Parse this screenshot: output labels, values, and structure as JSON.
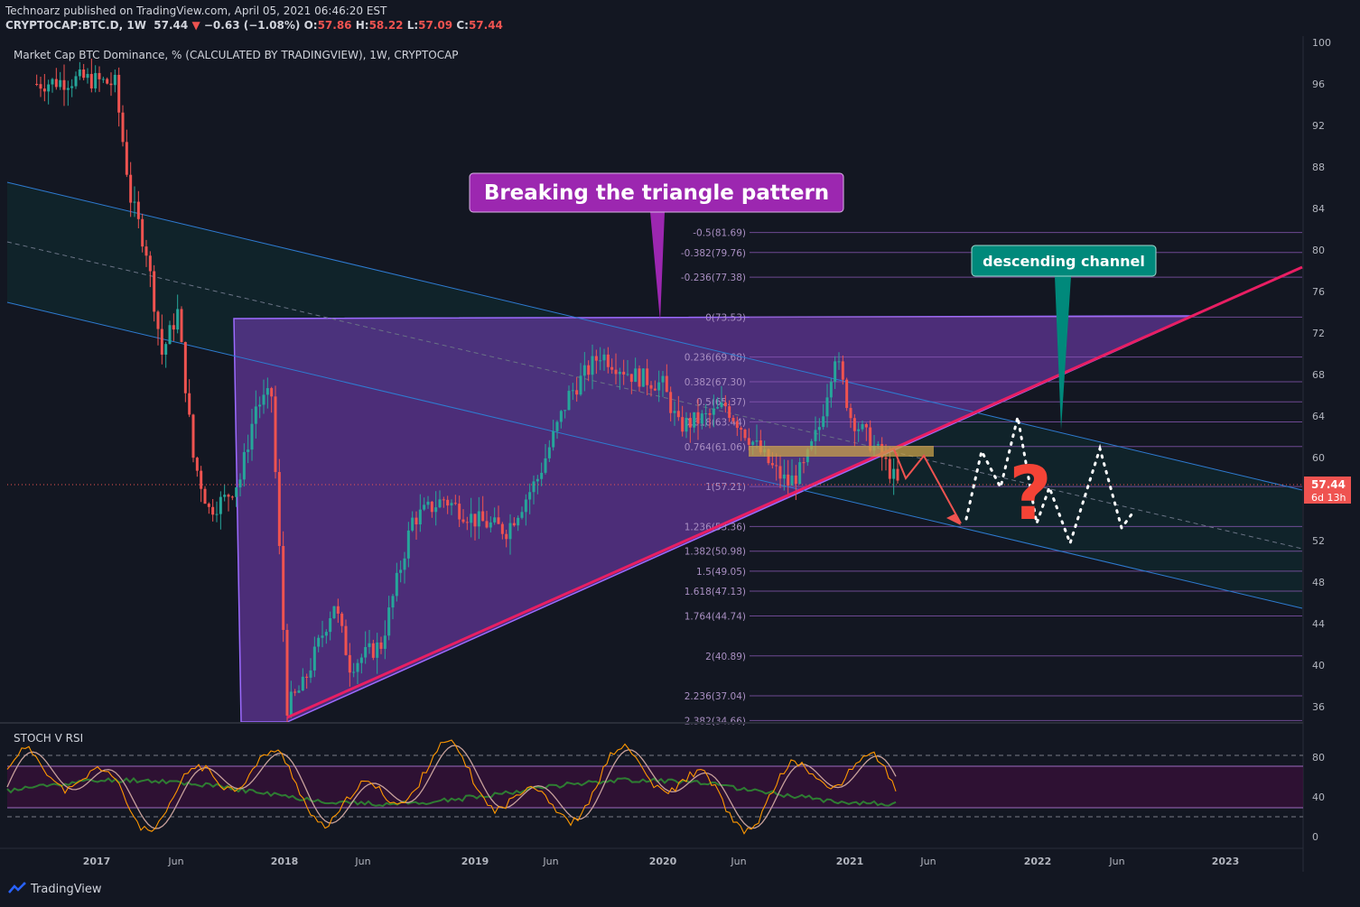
{
  "header": {
    "publisher_line": "Technoarz published on TradingView.com, April 05, 2021 06:46:20 EST",
    "symbol": "CRYPTOCAP:BTC.D, 1W",
    "last": "57.44",
    "arrow": "▼",
    "change": "−0.63 (−1.08%)",
    "o_label": "O:",
    "o": "57.86",
    "h_label": "H:",
    "h": "58.22",
    "l_label": "L:",
    "l": "57.09",
    "c_label": "C:",
    "c": "57.44"
  },
  "footer": {
    "brand": "TradingView"
  },
  "colors": {
    "background": "#131722",
    "up_candle": "#26a69a",
    "down_candle": "#ef5350",
    "triangle_fill": "#7b3fbf",
    "support_line": "#e91e63",
    "channel_line": "#2e7bd1",
    "annotation_purple": "#9c27b0",
    "annotation_teal": "#00897b",
    "question_mark": "#f44336",
    "stoch_k": "#ff9800",
    "stoch_d": "#c7a09b",
    "rsi": "#2e7d32"
  },
  "chart_data": {
    "type": "candlestick",
    "title": "Market Cap BTC Dominance, % (CALCULATED BY TRADINGVIEW), 1W, CRYPTOCAP",
    "x_labels": [
      "2017",
      "Jun",
      "2018",
      "Jun",
      "2019",
      "Jun",
      "2020",
      "Jun",
      "2021",
      "Jun",
      "2022",
      "Jun",
      "2023"
    ],
    "y_ticks": [
      100,
      96,
      92,
      88,
      84,
      80,
      76,
      72,
      68,
      64,
      60,
      56,
      52,
      48,
      44,
      40,
      36
    ],
    "y_range": [
      34,
      100
    ],
    "last_price": "57.44",
    "countdown": "6d 13h",
    "series_close": [
      {
        "date": "2016-09",
        "value": 96
      },
      {
        "date": "2016-12",
        "value": 96.5
      },
      {
        "date": "2017-02",
        "value": 96
      },
      {
        "date": "2017-03",
        "value": 85
      },
      {
        "date": "2017-04",
        "value": 80
      },
      {
        "date": "2017-05",
        "value": 70
      },
      {
        "date": "2017-06",
        "value": 74
      },
      {
        "date": "2017-07",
        "value": 60
      },
      {
        "date": "2017-08",
        "value": 55
      },
      {
        "date": "2017-09",
        "value": 56
      },
      {
        "date": "2017-10",
        "value": 58
      },
      {
        "date": "2017-11",
        "value": 65
      },
      {
        "date": "2017-12",
        "value": 66
      },
      {
        "date": "2018-01",
        "value": 36
      },
      {
        "date": "2018-02",
        "value": 38
      },
      {
        "date": "2018-03",
        "value": 42
      },
      {
        "date": "2018-04",
        "value": 46
      },
      {
        "date": "2018-05",
        "value": 40
      },
      {
        "date": "2018-07",
        "value": 42
      },
      {
        "date": "2018-09",
        "value": 54
      },
      {
        "date": "2018-11",
        "value": 56
      },
      {
        "date": "2019-01",
        "value": 54
      },
      {
        "date": "2019-03",
        "value": 53
      },
      {
        "date": "2019-05",
        "value": 58
      },
      {
        "date": "2019-07",
        "value": 66
      },
      {
        "date": "2019-09",
        "value": 70
      },
      {
        "date": "2019-11",
        "value": 68
      },
      {
        "date": "2020-01",
        "value": 67
      },
      {
        "date": "2020-02",
        "value": 63
      },
      {
        "date": "2020-04",
        "value": 64
      },
      {
        "date": "2020-05",
        "value": 65
      },
      {
        "date": "2020-07",
        "value": 61
      },
      {
        "date": "2020-08",
        "value": 59
      },
      {
        "date": "2020-09",
        "value": 57.5
      },
      {
        "date": "2020-10",
        "value": 59
      },
      {
        "date": "2020-11",
        "value": 63
      },
      {
        "date": "2020-12",
        "value": 70
      },
      {
        "date": "2021-01",
        "value": 64
      },
      {
        "date": "2021-02",
        "value": 62
      },
      {
        "date": "2021-03",
        "value": 60
      },
      {
        "date": "2021-04",
        "value": 57.44
      }
    ],
    "fib_levels": [
      {
        "label": "-0.5(81.69)",
        "value": 81.69
      },
      {
        "label": "-0.382(79.76)",
        "value": 79.76
      },
      {
        "label": "-0.236(77.38)",
        "value": 77.38
      },
      {
        "label": "0(73.53)",
        "value": 73.53
      },
      {
        "label": "0.236(69.68)",
        "value": 69.68
      },
      {
        "label": "0.382(67.30)",
        "value": 67.3
      },
      {
        "label": "0.5(65.37)",
        "value": 65.37
      },
      {
        "label": "0.618(63.44)",
        "value": 63.44
      },
      {
        "label": "0.764(61.06)",
        "value": 61.06
      },
      {
        "label": "1(57.21)",
        "value": 57.21
      },
      {
        "label": "1.236(53.36)",
        "value": 53.36
      },
      {
        "label": "1.382(50.98)",
        "value": 50.98
      },
      {
        "label": "1.5(49.05)",
        "value": 49.05
      },
      {
        "label": "1.618(47.13)",
        "value": 47.13
      },
      {
        "label": "1.764(44.74)",
        "value": 44.74
      },
      {
        "label": "2(40.89)",
        "value": 40.89
      },
      {
        "label": "2.236(37.04)",
        "value": 37.04
      },
      {
        "label": "2.382(34.66)",
        "value": 34.66
      }
    ],
    "annotations": [
      {
        "text": "Breaking the triangle pattern",
        "color": "#9c27b0"
      },
      {
        "text": "descending channel",
        "color": "#00897b"
      },
      {
        "text": "?",
        "color": "#f44336"
      }
    ],
    "indicator": {
      "name": "STOCH V RSI",
      "y_ticks": [
        80,
        40,
        0
      ],
      "upper_band": 80,
      "lower_band": 20,
      "shaded_range": [
        30,
        70
      ]
    }
  }
}
